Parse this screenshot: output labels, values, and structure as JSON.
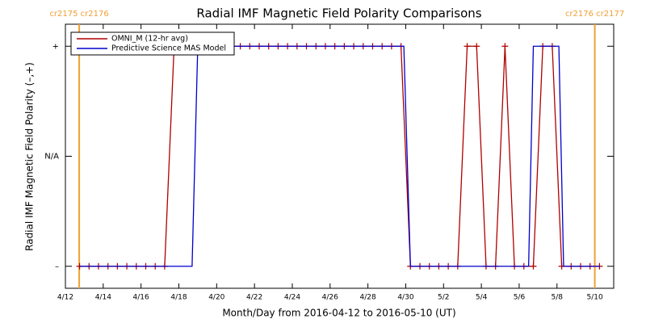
{
  "chart_data": {
    "type": "line",
    "title": "Radial IMF Magnetic Field Polarity Comparisons",
    "xlabel": "Month/Day from 2016-04-12 to 2016-05-10 (UT)",
    "ylabel": "Radial IMF Magnetic Field Polarity (–,+)",
    "xlim": [
      0,
      29
    ],
    "xticks": [
      {
        "value": 0,
        "label": "4/12"
      },
      {
        "value": 2,
        "label": "4/14"
      },
      {
        "value": 4,
        "label": "4/16"
      },
      {
        "value": 6,
        "label": "4/18"
      },
      {
        "value": 8,
        "label": "4/20"
      },
      {
        "value": 10,
        "label": "4/22"
      },
      {
        "value": 12,
        "label": "4/24"
      },
      {
        "value": 14,
        "label": "4/26"
      },
      {
        "value": 16,
        "label": "4/28"
      },
      {
        "value": 18,
        "label": "4/30"
      },
      {
        "value": 20,
        "label": "5/2"
      },
      {
        "value": 22,
        "label": "5/4"
      },
      {
        "value": 24,
        "label": "5/6"
      },
      {
        "value": 26,
        "label": "5/8"
      },
      {
        "value": 28,
        "label": "5/10"
      }
    ],
    "ylim": [
      -1.2,
      1.2
    ],
    "yticks": [
      {
        "value": -1,
        "label": "–"
      },
      {
        "value": 0,
        "label": "N/A"
      },
      {
        "value": 1,
        "label": "+"
      }
    ],
    "legend": "upper left",
    "boundaries": [
      {
        "x": 0.73,
        "label": "cr2175 cr2176",
        "color": "#f0a030"
      },
      {
        "x": 28.0,
        "label": "cr2176 cr2177",
        "color": "#f0a030"
      }
    ],
    "series": [
      {
        "name": "OMNI_M (12-hr avg)",
        "color": "#b00000",
        "marker": "+",
        "x": [
          0.75,
          1.25,
          1.75,
          2.25,
          2.75,
          3.25,
          3.75,
          4.25,
          4.75,
          5.25,
          5.75,
          6.25,
          6.75,
          7.25,
          7.75,
          8.25,
          8.75,
          9.25,
          9.75,
          10.25,
          10.75,
          11.25,
          11.75,
          12.25,
          12.75,
          13.25,
          13.75,
          14.25,
          14.75,
          15.25,
          15.75,
          16.25,
          16.75,
          17.25,
          17.75,
          18.25,
          18.75,
          19.25,
          19.75,
          20.25,
          20.75,
          21.25,
          21.75,
          22.25,
          22.75,
          23.25,
          23.75,
          24.25,
          24.75,
          25.25,
          25.75,
          26.25,
          26.75,
          27.25,
          27.75,
          28.25
        ],
        "values": [
          -1,
          -1,
          -1,
          -1,
          -1,
          -1,
          -1,
          -1,
          -1,
          -1,
          1,
          1,
          1,
          1,
          1,
          1,
          1,
          1,
          1,
          1,
          1,
          1,
          1,
          1,
          1,
          1,
          1,
          1,
          1,
          1,
          1,
          1,
          1,
          1,
          1,
          -1,
          -1,
          -1,
          -1,
          -1,
          -1,
          1,
          1,
          -1,
          -1,
          1,
          -1,
          -1,
          -1,
          1,
          1,
          -1,
          -1,
          -1,
          -1,
          -1
        ]
      },
      {
        "name": "Predictive Science MAS Model",
        "color": "#0000cc",
        "x": [
          0.75,
          6.7,
          7.0,
          17.9,
          18.25,
          24.5,
          24.75,
          26.1,
          26.35,
          28.25
        ],
        "values": [
          -1,
          -1,
          1,
          1,
          -1,
          -1,
          1,
          1,
          -1,
          -1
        ]
      }
    ]
  }
}
